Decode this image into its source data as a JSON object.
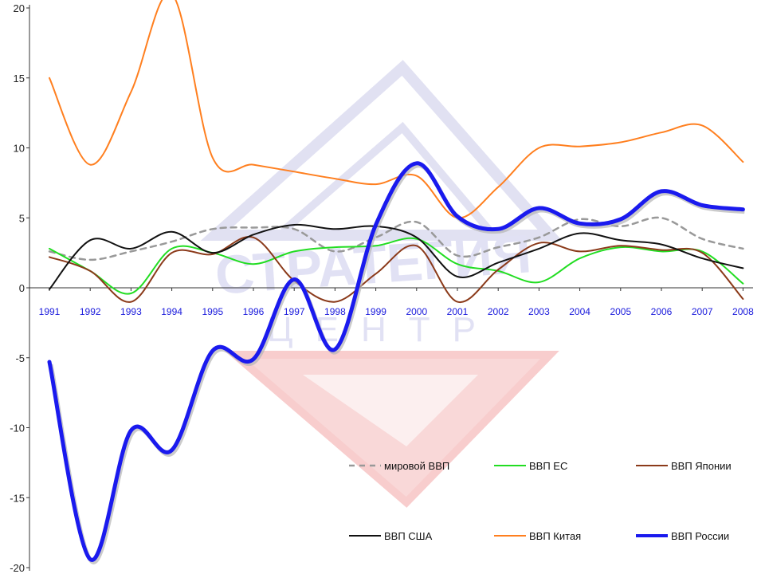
{
  "chart_data": {
    "type": "line",
    "title": "",
    "xlabel": "",
    "ylabel": "",
    "ylim": [
      -20,
      20
    ],
    "yticks": [
      20,
      15,
      10,
      5,
      0,
      -5,
      -10,
      -15,
      -20
    ],
    "ytick_labels": [
      "20",
      "15",
      "10",
      "5",
      "0",
      "-5",
      "-10",
      "-15",
      "-20"
    ],
    "categories": [
      "1991",
      "1992",
      "1993",
      "1994",
      "1995",
      "1996",
      "1997",
      "1998",
      "1999",
      "2000",
      "2001",
      "2002",
      "2003",
      "2004",
      "2005",
      "2006",
      "2007",
      "2008"
    ],
    "grid": false,
    "legend_position": "bottom-right",
    "series": [
      {
        "name": "мировой ВВП",
        "color": "#999999",
        "dashed": true,
        "width": 2.5,
        "values": [
          2.6,
          2.0,
          2.6,
          3.3,
          4.2,
          4.3,
          4.2,
          2.6,
          3.6,
          4.7,
          2.3,
          2.9,
          3.6,
          4.9,
          4.4,
          5.0,
          3.5,
          2.8
        ]
      },
      {
        "name": "ВВП ЕС",
        "color": "#22dd22",
        "dashed": false,
        "width": 2,
        "values": [
          2.8,
          1.2,
          -0.4,
          2.8,
          2.5,
          1.7,
          2.6,
          2.9,
          3.0,
          3.5,
          1.7,
          1.2,
          0.4,
          2.1,
          2.9,
          2.6,
          2.6,
          0.3
        ]
      },
      {
        "name": "ВВП Японии",
        "color": "#8b3a1a",
        "dashed": false,
        "width": 2,
        "values": [
          2.2,
          1.2,
          -1.0,
          2.5,
          2.4,
          3.6,
          0.5,
          -1.0,
          1.0,
          3.0,
          -1.0,
          1.3,
          3.2,
          2.6,
          3.0,
          2.7,
          2.5,
          -0.8
        ]
      },
      {
        "name": "ВВП США",
        "color": "#111111",
        "dashed": false,
        "width": 2,
        "values": [
          -0.1,
          3.4,
          2.8,
          4.0,
          2.5,
          3.8,
          4.5,
          4.2,
          4.4,
          3.6,
          0.8,
          1.8,
          2.8,
          3.9,
          3.4,
          3.1,
          2.1,
          1.4
        ]
      },
      {
        "name": "ВВП Китая",
        "color": "#ff7f1f",
        "dashed": false,
        "width": 2,
        "values": [
          15.0,
          8.8,
          14.0,
          21.0,
          9.3,
          8.8,
          8.3,
          7.8,
          7.4,
          8.0,
          5.0,
          7.2,
          10.0,
          10.1,
          10.4,
          11.1,
          11.6,
          9.0
        ]
      },
      {
        "name": "ВВП России",
        "color": "#1a1aee",
        "dashed": false,
        "width": 5,
        "values": [
          -5.3,
          -19.4,
          -10.2,
          -11.6,
          -4.5,
          -5.1,
          0.6,
          -4.4,
          4.5,
          8.9,
          5.1,
          4.2,
          5.7,
          4.6,
          4.9,
          6.9,
          5.9,
          5.6
        ]
      }
    ],
    "legend_order": [
      "мировой ВВП",
      "ВВП ЕС",
      "ВВП Японии",
      "ВВП США",
      "ВВП Китая",
      "ВВП России"
    ]
  }
}
